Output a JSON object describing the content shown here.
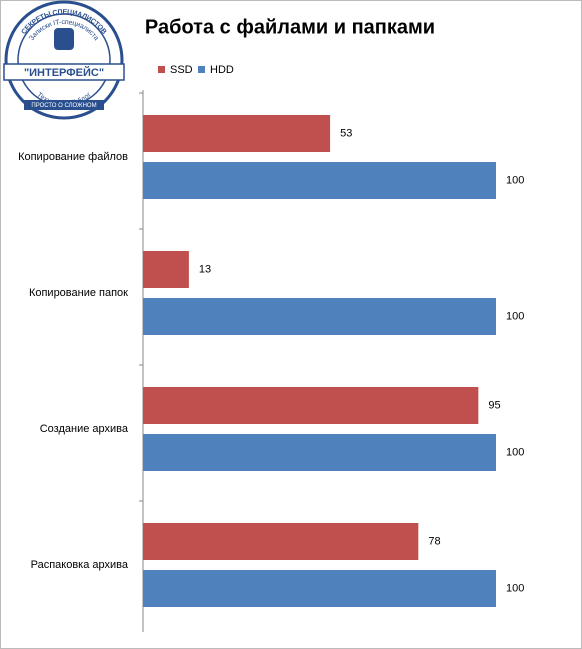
{
  "chart_data": {
    "type": "barh",
    "title": "Работа с файлами и папками",
    "categories": [
      "Копирование файлов",
      "Копирование папок",
      "Создание архива",
      "Распаковка архива"
    ],
    "series": [
      {
        "name": "SSD",
        "color": "#c0504d",
        "values": [
          53,
          13,
          95,
          78
        ]
      },
      {
        "name": "HDD",
        "color": "#4f81bd",
        "values": [
          100,
          100,
          100,
          100
        ]
      }
    ],
    "xlim": [
      0,
      100
    ],
    "legend": "top"
  },
  "logo": {
    "top_arc": "СЕКРЕТЫ СПЕЦИАЛИСТОВ",
    "inner_arc": "Записки IT-специалиста",
    "name": "\"ИНТЕРФЕЙС\"",
    "lower_arc": "Технический блог",
    "ribbon": "ПРОСТО О СЛОЖНОМ"
  }
}
